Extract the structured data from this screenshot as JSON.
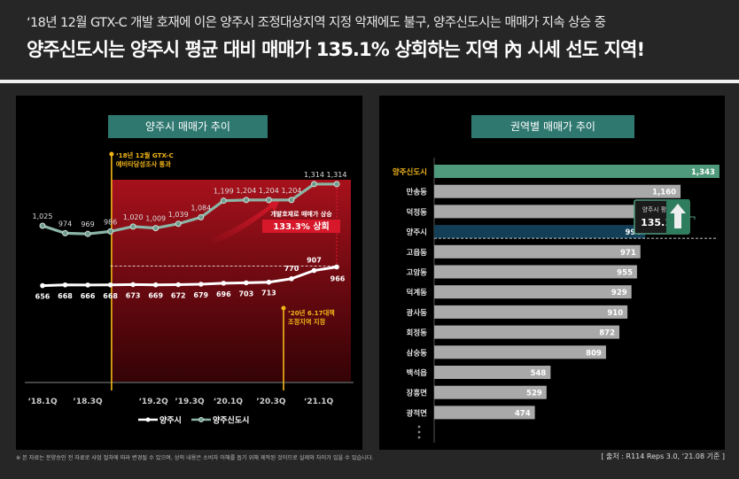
{
  "header": {
    "subtitle": "‘18년 12월 GTX-C 개발 호재에 이은 양주시 조정대상지역 지정 악재에도 불구, 양주신도시는 매매가 지속 상승 중",
    "headline": "양주신도시는 양주시 평균 대비 매매가 135.1% 상회하는 지역 內 시세 선도 지역!"
  },
  "colors": {
    "teal": "#2f7870",
    "green_bar": "#4f9a7c",
    "navy_bar": "#123f57",
    "gray_bar": "#a9a9a9",
    "yellow": "#f2b619",
    "red": "#d6182a"
  },
  "footer": {
    "note": "※ 본 자료는 분양승인 전 자료로 사업 절차에 따라 변경될 수 있으며, 상의 내용은 소비자 이해를 돕기 위해 제작된 것이므로 실제와 차이가 있을 수 있습니다.",
    "source": "[ 출처 : R114 Reps 3.0, ‘21.08 기준 ]"
  },
  "chart_data": [
    {
      "type": "line",
      "title": "양주시 매매가 추이",
      "x_ticks": [
        "‘18.1Q",
        "’18.3Q",
        "‘19.2Q",
        "’19.3Q",
        "‘20.1Q",
        "’20.3Q",
        "‘21.1Q"
      ],
      "series": [
        {
          "name": "양주시",
          "values": [
            656,
            668,
            666,
            668,
            673,
            669,
            672,
            679,
            696,
            703,
            713,
            770,
            907,
            966
          ]
        },
        {
          "name": "양주신도시",
          "values": [
            1025,
            974,
            969,
            986,
            1020,
            1009,
            1039,
            1084,
            1199,
            1204,
            1204,
            1204,
            1314,
            1314
          ]
        }
      ],
      "annotations": {
        "event1": [
          "‘18년 12월 GTX-C",
          "예비타당성조사 통과"
        ],
        "event2": [
          "’20년 6.17대책",
          "조정지역 지정"
        ],
        "compare_label": "개발호재로 매매가 상승",
        "compare_value": "133.3% 상회"
      }
    },
    {
      "type": "bar",
      "title": "권역별 매매가 추이",
      "categories": [
        "양주신도시",
        "만송동",
        "덕정동",
        "양주시",
        "고읍동",
        "고암동",
        "덕계동",
        "광사동",
        "회정동",
        "삼숭동",
        "백석읍",
        "장흥면",
        "광적면"
      ],
      "values": [
        1343,
        1160,
        1088,
        994,
        971,
        955,
        929,
        910,
        872,
        809,
        548,
        529,
        474
      ],
      "callout_label": "양주시 평균 比",
      "callout_value": "135.1%"
    }
  ]
}
